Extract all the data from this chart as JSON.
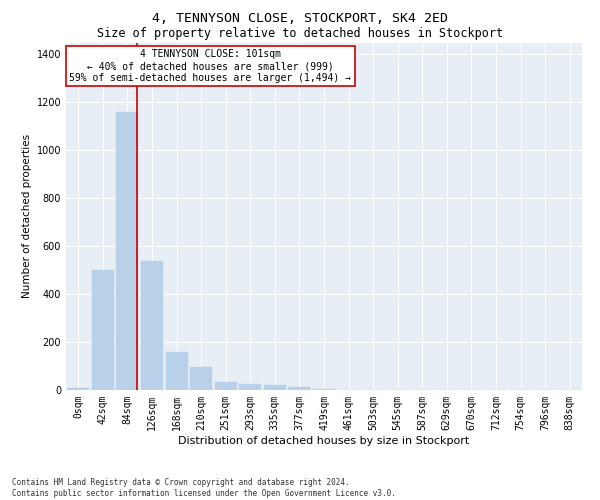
{
  "title1": "4, TENNYSON CLOSE, STOCKPORT, SK4 2ED",
  "title2": "Size of property relative to detached houses in Stockport",
  "xlabel": "Distribution of detached houses by size in Stockport",
  "ylabel": "Number of detached properties",
  "bar_color": "#b8d0e8",
  "bar_edge_color": "#b8d0e8",
  "background_color": "#e8eef5",
  "grid_color": "#ffffff",
  "bin_labels": [
    "0sqm",
    "42sqm",
    "84sqm",
    "126sqm",
    "168sqm",
    "210sqm",
    "251sqm",
    "293sqm",
    "335sqm",
    "377sqm",
    "419sqm",
    "461sqm",
    "503sqm",
    "545sqm",
    "587sqm",
    "629sqm",
    "670sqm",
    "712sqm",
    "754sqm",
    "796sqm",
    "838sqm"
  ],
  "bar_heights": [
    10,
    500,
    1160,
    540,
    160,
    95,
    35,
    25,
    20,
    12,
    5,
    0,
    0,
    0,
    0,
    0,
    0,
    0,
    0,
    0,
    0
  ],
  "ylim": [
    0,
    1450
  ],
  "yticks": [
    0,
    200,
    400,
    600,
    800,
    1000,
    1200,
    1400
  ],
  "property_line_x": 2.405,
  "annotation_text": "4 TENNYSON CLOSE: 101sqm\n← 40% of detached houses are smaller (999)\n59% of semi-detached houses are larger (1,494) →",
  "footer_text": "Contains HM Land Registry data © Crown copyright and database right 2024.\nContains public sector information licensed under the Open Government Licence v3.0.",
  "red_line_color": "#cc0000",
  "annotation_box_color": "#ffffff",
  "annotation_box_edge": "#cc0000",
  "title1_fontsize": 9.5,
  "title2_fontsize": 8.5,
  "xlabel_fontsize": 8,
  "ylabel_fontsize": 7.5,
  "tick_fontsize": 7,
  "annotation_fontsize": 7,
  "footer_fontsize": 5.5
}
